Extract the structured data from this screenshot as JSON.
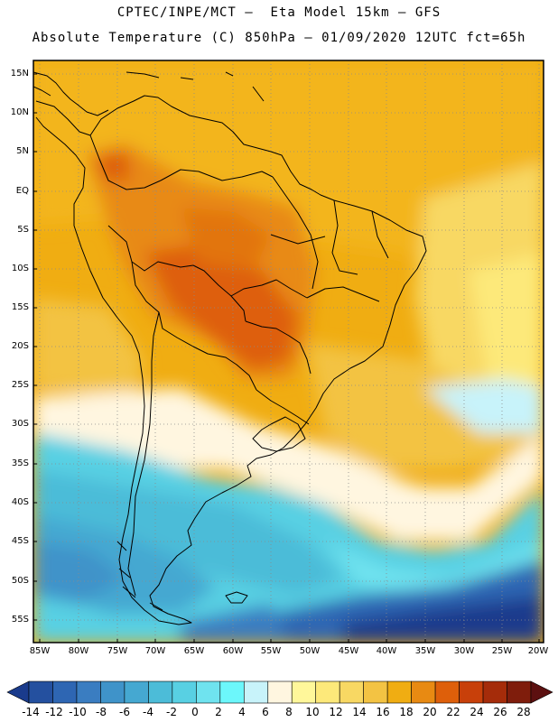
{
  "header": {
    "line1": "CPTEC/INPE/MCT –  Eta Model 15km – GFS",
    "line2": "Absolute Temperature (C) 850hPa – 01/09/2020 12UTC fct=65h"
  },
  "map": {
    "latitude_labels": [
      "15N",
      "10N",
      "5N",
      "EQ",
      "5S",
      "10S",
      "15S",
      "20S",
      "25S",
      "30S",
      "35S",
      "40S",
      "45S",
      "50S",
      "55S"
    ],
    "longitude_labels": [
      "85W",
      "80W",
      "75W",
      "70W",
      "65W",
      "60W",
      "55W",
      "50W",
      "45W",
      "40W",
      "35W",
      "30W",
      "25W",
      "20W"
    ]
  },
  "colorbar": {
    "labels": [
      "-14",
      "-12",
      "-10",
      "-8",
      "-6",
      "-4",
      "-2",
      "0",
      "2",
      "4",
      "6",
      "8",
      "10",
      "12",
      "14",
      "16",
      "18",
      "20",
      "22",
      "24",
      "26",
      "28"
    ],
    "colors": [
      "#1a3b8c",
      "#24509f",
      "#2e66b3",
      "#3a7dc1",
      "#3f93c9",
      "#45a8d1",
      "#4cbcd8",
      "#58d0e3",
      "#6fe3ef",
      "#6cf7fb",
      "#c8f3fa",
      "#fff6e0",
      "#fff79a",
      "#fde97a",
      "#f8d863",
      "#f3c343",
      "#f0ad12",
      "#e88a12",
      "#de5f0a",
      "#c8400a",
      "#a52c0a",
      "#7f1d0c",
      "#5c1010"
    ]
  }
}
